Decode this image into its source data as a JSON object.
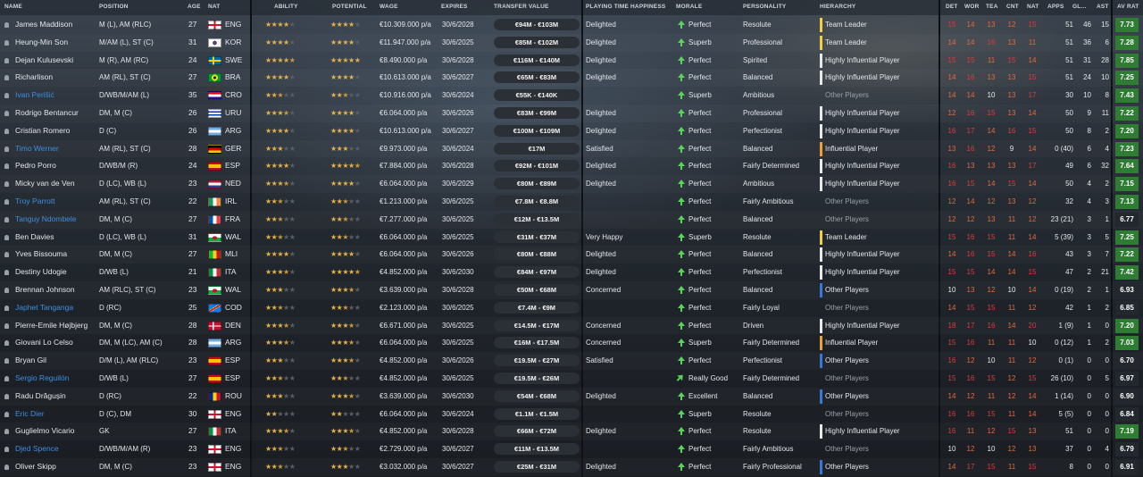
{
  "headers": {
    "name": "NAME",
    "position": "POSITION",
    "age": "AGE",
    "nat": "NAT",
    "ability": "ABILITY",
    "potential": "POTENTIAL",
    "wage": "WAGE",
    "expires": "EXPIRES",
    "transfer_value": "TRANSFER VALUE",
    "playing_time": "PLAYING TIME HAPPINESS",
    "morale": "MORALE",
    "personality": "PERSONALITY",
    "hierarchy": "HIERARCHY",
    "det": "DET",
    "wor": "WOR",
    "tea": "TEA",
    "cnt": "CNT",
    "nat2": "NAT",
    "apps": "APPS",
    "gls": "GL...",
    "ast": "AST",
    "avrat": "AV RAT"
  },
  "colors": {
    "team_leader": "#f0d040",
    "highly_influential": "#e8e8e8",
    "influential": "#f0a030",
    "other": "#3a78d8",
    "avr_green": "#2e7d32",
    "avr_dark": "#23282f"
  },
  "players": [
    {
      "name": "James Maddison",
      "pos": "M (L), AM (RLC)",
      "age": "27",
      "nat": "ENG",
      "flag": "eng",
      "ab": [
        4,
        0
      ],
      "pot": [
        4,
        0
      ],
      "wage": "€10.309.000 p/a",
      "exp": "30/6/2028",
      "val": "€94M - €103M",
      "pt": "Delighted",
      "mor": "Perfect",
      "arrow": "up",
      "pers": "Resolute",
      "hier": "Team Leader",
      "hc": "team_leader",
      "attrs": [
        "15",
        "14",
        "13",
        "12",
        "15"
      ],
      "apps": "51",
      "gls": "46",
      "ast": "15",
      "avr": "7.73",
      "blue": false
    },
    {
      "name": "Heung-Min Son",
      "pos": "M/AM (L), ST (C)",
      "age": "31",
      "nat": "KOR",
      "flag": "kor",
      "ab": [
        4,
        0
      ],
      "pot": [
        4,
        0
      ],
      "wage": "€11.947.000 p/a",
      "exp": "30/6/2025",
      "val": "€85M - €102M",
      "pt": "Delighted",
      "mor": "Superb",
      "arrow": "up",
      "pers": "Professional",
      "hier": "Team Leader",
      "hc": "team_leader",
      "attrs": [
        "14",
        "14",
        "16",
        "13",
        "11"
      ],
      "apps": "51",
      "gls": "36",
      "ast": "6",
      "avr": "7.28",
      "blue": false
    },
    {
      "name": "Dejan Kulusevski",
      "pos": "M (R), AM (RC)",
      "age": "24",
      "nat": "SWE",
      "flag": "swe",
      "ab": [
        4,
        1
      ],
      "pot": [
        5,
        0
      ],
      "wage": "€8.490.000 p/a",
      "exp": "30/6/2028",
      "val": "€116M - €140M",
      "pt": "Delighted",
      "mor": "Perfect",
      "arrow": "up",
      "pers": "Spirited",
      "hier": "Highly Influential Player",
      "hc": "highly_influential",
      "attrs": [
        "15",
        "15",
        "11",
        "15",
        "14"
      ],
      "apps": "51",
      "gls": "31",
      "ast": "28",
      "avr": "7.85",
      "blue": false
    },
    {
      "name": "Richarlison",
      "pos": "AM (RL), ST (C)",
      "age": "27",
      "nat": "BRA",
      "flag": "bra",
      "ab": [
        4,
        0
      ],
      "pot": [
        4,
        0
      ],
      "wage": "€10.613.000 p/a",
      "exp": "30/6/2027",
      "val": "€65M - €83M",
      "pt": "Delighted",
      "mor": "Perfect",
      "arrow": "up",
      "pers": "Balanced",
      "hier": "Highly Influential Player",
      "hc": "highly_influential",
      "attrs": [
        "14",
        "16",
        "13",
        "13",
        "15"
      ],
      "apps": "51",
      "gls": "24",
      "ast": "10",
      "avr": "7.25",
      "blue": false
    },
    {
      "name": "Ivan Perišić",
      "pos": "D/WB/M/AM (L)",
      "age": "35",
      "nat": "CRO",
      "flag": "cro",
      "ab": [
        2,
        1
      ],
      "pot": [
        2,
        1
      ],
      "wage": "€10.916.000 p/a",
      "exp": "30/6/2024",
      "val": "€55K - €140K",
      "pt": "",
      "mor": "Superb",
      "arrow": "up",
      "pers": "Ambitious",
      "hier": "Other Players",
      "hc": "",
      "attrs": [
        "14",
        "14",
        "10",
        "13",
        "17"
      ],
      "apps": "30",
      "gls": "10",
      "ast": "8",
      "avr": "7.43",
      "blue": true
    },
    {
      "name": "Rodrigo Bentancur",
      "pos": "DM, M (C)",
      "age": "26",
      "nat": "URU",
      "flag": "uru",
      "ab": [
        3,
        1
      ],
      "pot": [
        4,
        0
      ],
      "wage": "€6.064.000 p/a",
      "exp": "30/6/2026",
      "val": "€83M - €99M",
      "pt": "Delighted",
      "mor": "Perfect",
      "arrow": "up",
      "pers": "Professional",
      "hier": "Highly Influential Player",
      "hc": "highly_influential",
      "attrs": [
        "12",
        "16",
        "15",
        "13",
        "14"
      ],
      "apps": "50",
      "gls": "9",
      "ast": "11",
      "avr": "7.22",
      "blue": false
    },
    {
      "name": "Cristian Romero",
      "pos": "D (C)",
      "age": "26",
      "nat": "ARG",
      "flag": "arg",
      "ab": [
        4,
        0
      ],
      "pot": [
        4,
        0
      ],
      "wage": "€10.613.000 p/a",
      "exp": "30/6/2027",
      "val": "€100M - €109M",
      "pt": "Delighted",
      "mor": "Perfect",
      "arrow": "up",
      "pers": "Perfectionist",
      "hier": "Highly Influential Player",
      "hc": "highly_influential",
      "attrs": [
        "16",
        "17",
        "14",
        "16",
        "15"
      ],
      "apps": "50",
      "gls": "8",
      "ast": "2",
      "avr": "7.20",
      "blue": false
    },
    {
      "name": "Timo Werner",
      "pos": "AM (RL), ST (C)",
      "age": "28",
      "nat": "GER",
      "flag": "ger",
      "ab": [
        3,
        0
      ],
      "pot": [
        3,
        0
      ],
      "wage": "€9.973.000 p/a",
      "exp": "30/6/2024",
      "val": "€17M",
      "pt": "Satisfied",
      "mor": "Perfect",
      "arrow": "up",
      "pers": "Balanced",
      "hier": "Influential Player",
      "hc": "influential",
      "attrs": [
        "13",
        "16",
        "12",
        "9",
        "14"
      ],
      "apps": "0 (40)",
      "gls": "6",
      "ast": "4",
      "avr": "7.23",
      "blue": true
    },
    {
      "name": "Pedro Porro",
      "pos": "D/WB/M (R)",
      "age": "24",
      "nat": "ESP",
      "flag": "esp",
      "ab": [
        4,
        0
      ],
      "pot": [
        4,
        1
      ],
      "wage": "€7.884.000 p/a",
      "exp": "30/6/2028",
      "val": "€92M - €101M",
      "pt": "Delighted",
      "mor": "Perfect",
      "arrow": "up",
      "pers": "Fairly Determined",
      "hier": "Highly Influential Player",
      "hc": "highly_influential",
      "attrs": [
        "16",
        "13",
        "13",
        "13",
        "17"
      ],
      "apps": "49",
      "gls": "6",
      "ast": "32",
      "avr": "7.64",
      "blue": false
    },
    {
      "name": "Micky van de Ven",
      "pos": "D (LC), WB (L)",
      "age": "23",
      "nat": "NED",
      "flag": "ned",
      "ab": [
        3,
        1
      ],
      "pot": [
        4,
        0
      ],
      "wage": "€6.064.000 p/a",
      "exp": "30/6/2029",
      "val": "€80M - €89M",
      "pt": "Delighted",
      "mor": "Perfect",
      "arrow": "up",
      "pers": "Ambitious",
      "hier": "Highly Influential Player",
      "hc": "highly_influential",
      "attrs": [
        "16",
        "15",
        "14",
        "15",
        "14"
      ],
      "apps": "50",
      "gls": "4",
      "ast": "2",
      "avr": "7.15",
      "blue": false
    },
    {
      "name": "Troy Parrott",
      "pos": "AM (RL), ST (C)",
      "age": "22",
      "nat": "IRL",
      "flag": "irl",
      "ab": [
        2,
        1
      ],
      "pot": [
        2,
        1
      ],
      "wage": "€1.213.000 p/a",
      "exp": "30/6/2025",
      "val": "€7.8M - €8.8M",
      "pt": "",
      "mor": "Perfect",
      "arrow": "up",
      "pers": "Fairly Ambitious",
      "hier": "Other Players",
      "hc": "",
      "attrs": [
        "12",
        "14",
        "12",
        "13",
        "12"
      ],
      "apps": "32",
      "gls": "4",
      "ast": "3",
      "avr": "7.13",
      "blue": true
    },
    {
      "name": "Tanguy Ndombele",
      "pos": "DM, M (C)",
      "age": "27",
      "nat": "FRA",
      "flag": "fra",
      "ab": [
        2,
        1
      ],
      "pot": [
        2,
        1
      ],
      "wage": "€7.277.000 p/a",
      "exp": "30/6/2025",
      "val": "€12M - €13.5M",
      "pt": "",
      "mor": "Perfect",
      "arrow": "up",
      "pers": "Balanced",
      "hier": "Other Players",
      "hc": "",
      "attrs": [
        "12",
        "12",
        "13",
        "11",
        "12"
      ],
      "apps": "23 (21)",
      "gls": "3",
      "ast": "1",
      "avr": "6.77",
      "blue": true
    },
    {
      "name": "Ben Davies",
      "pos": "D (LC), WB (L)",
      "age": "31",
      "nat": "WAL",
      "flag": "wal",
      "ab": [
        2,
        1
      ],
      "pot": [
        2,
        1
      ],
      "wage": "€6.064.000 p/a",
      "exp": "30/6/2025",
      "val": "€31M - €37M",
      "pt": "Very Happy",
      "mor": "Superb",
      "arrow": "up",
      "pers": "Resolute",
      "hier": "Team Leader",
      "hc": "team_leader",
      "attrs": [
        "15",
        "16",
        "15",
        "11",
        "14"
      ],
      "apps": "5 (39)",
      "gls": "3",
      "ast": "5",
      "avr": "7.25",
      "blue": false
    },
    {
      "name": "Yves Bissouma",
      "pos": "DM, M (C)",
      "age": "27",
      "nat": "MLI",
      "flag": "mli",
      "ab": [
        4,
        0
      ],
      "pot": [
        4,
        0
      ],
      "wage": "€6.064.000 p/a",
      "exp": "30/6/2026",
      "val": "€80M - €88M",
      "pt": "Delighted",
      "mor": "Perfect",
      "arrow": "up",
      "pers": "Balanced",
      "hier": "Highly Influential Player",
      "hc": "highly_influential",
      "attrs": [
        "14",
        "16",
        "15",
        "14",
        "16"
      ],
      "apps": "43",
      "gls": "3",
      "ast": "7",
      "avr": "7.22",
      "blue": false
    },
    {
      "name": "Destiny Udogie",
      "pos": "D/WB (L)",
      "age": "21",
      "nat": "ITA",
      "flag": "ita",
      "ab": [
        3,
        1
      ],
      "pot": [
        4,
        1
      ],
      "wage": "€4.852.000 p/a",
      "exp": "30/6/2030",
      "val": "€84M - €97M",
      "pt": "Delighted",
      "mor": "Perfect",
      "arrow": "up",
      "pers": "Perfectionist",
      "hier": "Highly Influential Player",
      "hc": "highly_influential",
      "attrs": [
        "15",
        "15",
        "14",
        "14",
        "15"
      ],
      "apps": "47",
      "gls": "2",
      "ast": "21",
      "avr": "7.42",
      "blue": false
    },
    {
      "name": "Brennan Johnson",
      "pos": "AM (RLC), ST (C)",
      "age": "23",
      "nat": "WAL",
      "flag": "wal",
      "ab": [
        3,
        0
      ],
      "pot": [
        3,
        1
      ],
      "wage": "€3.639.000 p/a",
      "exp": "30/6/2028",
      "val": "€50M - €68M",
      "pt": "Concerned",
      "mor": "Perfect",
      "arrow": "up",
      "pers": "Balanced",
      "hier": "Other Players",
      "hc": "other",
      "attrs": [
        "10",
        "13",
        "12",
        "10",
        "14"
      ],
      "apps": "0 (19)",
      "gls": "2",
      "ast": "1",
      "avr": "6.93",
      "blue": false
    },
    {
      "name": "Japhet Tanganga",
      "pos": "D (RC)",
      "age": "25",
      "nat": "COD",
      "flag": "cod",
      "ab": [
        2,
        1
      ],
      "pot": [
        2,
        1
      ],
      "wage": "€2.123.000 p/a",
      "exp": "30/6/2025",
      "val": "€7.4M - €9M",
      "pt": "",
      "mor": "Perfect",
      "arrow": "up",
      "pers": "Fairly Loyal",
      "hier": "Other Players",
      "hc": "",
      "attrs": [
        "14",
        "15",
        "15",
        "11",
        "12"
      ],
      "apps": "42",
      "gls": "1",
      "ast": "2",
      "avr": "6.85",
      "blue": true
    },
    {
      "name": "Pierre-Emile Højbjerg",
      "pos": "DM, M (C)",
      "age": "28",
      "nat": "DEN",
      "flag": "den",
      "ab": [
        3,
        1
      ],
      "pot": [
        3,
        1
      ],
      "wage": "€6.671.000 p/a",
      "exp": "30/6/2025",
      "val": "€14.5M - €17M",
      "pt": "Concerned",
      "mor": "Perfect",
      "arrow": "up",
      "pers": "Driven",
      "hier": "Highly Influential Player",
      "hc": "highly_influential",
      "attrs": [
        "18",
        "17",
        "16",
        "14",
        "20"
      ],
      "apps": "1 (9)",
      "gls": "1",
      "ast": "0",
      "avr": "7.20",
      "blue": false
    },
    {
      "name": "Giovani Lo Celso",
      "pos": "DM, M (LC), AM (C)",
      "age": "28",
      "nat": "ARG",
      "flag": "arg",
      "ab": [
        3,
        1
      ],
      "pot": [
        3,
        1
      ],
      "wage": "€6.064.000 p/a",
      "exp": "30/6/2025",
      "val": "€16M - €17.5M",
      "pt": "Concerned",
      "mor": "Superb",
      "arrow": "up",
      "pers": "Fairly Determined",
      "hier": "Influential Player",
      "hc": "influential",
      "attrs": [
        "15",
        "16",
        "11",
        "11",
        "10"
      ],
      "apps": "0 (12)",
      "gls": "1",
      "ast": "2",
      "avr": "7.03",
      "blue": false
    },
    {
      "name": "Bryan Gil",
      "pos": "D/M (L), AM (RLC)",
      "age": "23",
      "nat": "ESP",
      "flag": "esp",
      "ab": [
        3,
        0
      ],
      "pot": [
        3,
        1
      ],
      "wage": "€4.852.000 p/a",
      "exp": "30/6/2026",
      "val": "€19.5M - €27M",
      "pt": "Satisfied",
      "mor": "Perfect",
      "arrow": "up",
      "pers": "Perfectionist",
      "hier": "Other Players",
      "hc": "other",
      "attrs": [
        "16",
        "12",
        "10",
        "11",
        "12"
      ],
      "apps": "0 (1)",
      "gls": "0",
      "ast": "0",
      "avr": "6.70",
      "blue": false
    },
    {
      "name": "Sergio Reguilón",
      "pos": "D/WB (L)",
      "age": "27",
      "nat": "ESP",
      "flag": "esp",
      "ab": [
        2,
        1
      ],
      "pot": [
        2,
        1
      ],
      "wage": "€4.852.000 p/a",
      "exp": "30/6/2025",
      "val": "€19.5M - €26M",
      "pt": "",
      "mor": "Really Good",
      "arrow": "diag",
      "pers": "Fairly Determined",
      "hier": "Other Players",
      "hc": "",
      "attrs": [
        "15",
        "16",
        "15",
        "12",
        "15"
      ],
      "apps": "26 (10)",
      "gls": "0",
      "ast": "5",
      "avr": "6.97",
      "blue": true
    },
    {
      "name": "Radu Drăgușin",
      "pos": "D (RC)",
      "age": "22",
      "nat": "ROU",
      "flag": "rou",
      "ab": [
        3,
        0
      ],
      "pot": [
        3,
        1
      ],
      "wage": "€3.639.000 p/a",
      "exp": "30/6/2030",
      "val": "€54M - €68M",
      "pt": "Delighted",
      "mor": "Excellent",
      "arrow": "up",
      "pers": "Balanced",
      "hier": "Other Players",
      "hc": "other",
      "attrs": [
        "14",
        "12",
        "11",
        "12",
        "14"
      ],
      "apps": "1 (14)",
      "gls": "0",
      "ast": "0",
      "avr": "6.90",
      "blue": false
    },
    {
      "name": "Eric Dier",
      "pos": "D (C), DM",
      "age": "30",
      "nat": "ENG",
      "flag": "eng",
      "ab": [
        2,
        0
      ],
      "pot": [
        2,
        0
      ],
      "wage": "€6.064.000 p/a",
      "exp": "30/6/2024",
      "val": "€1.1M - €1.5M",
      "pt": "",
      "mor": "Superb",
      "arrow": "up",
      "pers": "Resolute",
      "hier": "Other Players",
      "hc": "",
      "attrs": [
        "16",
        "16",
        "15",
        "11",
        "14"
      ],
      "apps": "5 (5)",
      "gls": "0",
      "ast": "0",
      "avr": "6.84",
      "blue": true
    },
    {
      "name": "Guglielmo Vicario",
      "pos": "GK",
      "age": "27",
      "nat": "ITA",
      "flag": "ita",
      "ab": [
        3,
        1
      ],
      "pot": [
        3,
        1
      ],
      "wage": "€4.852.000 p/a",
      "exp": "30/6/2028",
      "val": "€66M - €72M",
      "pt": "Delighted",
      "mor": "Perfect",
      "arrow": "up",
      "pers": "Resolute",
      "hier": "Highly Influential Player",
      "hc": "highly_influential",
      "attrs": [
        "16",
        "11",
        "12",
        "15",
        "13"
      ],
      "apps": "51",
      "gls": "0",
      "ast": "0",
      "avr": "7.19",
      "blue": false
    },
    {
      "name": "Djed Spence",
      "pos": "D/WB/M/AM (R)",
      "age": "23",
      "nat": "ENG",
      "flag": "eng",
      "ab": [
        2,
        1
      ],
      "pot": [
        2,
        1
      ],
      "wage": "€2.729.000 p/a",
      "exp": "30/6/2027",
      "val": "€11M - €13.5M",
      "pt": "",
      "mor": "Perfect",
      "arrow": "up",
      "pers": "Fairly Ambitious",
      "hier": "Other Players",
      "hc": "",
      "attrs": [
        "10",
        "12",
        "10",
        "12",
        "13"
      ],
      "apps": "37",
      "gls": "0",
      "ast": "4",
      "avr": "6.79",
      "blue": true
    },
    {
      "name": "Oliver Skipp",
      "pos": "DM, M (C)",
      "age": "23",
      "nat": "ENG",
      "flag": "eng",
      "ab": [
        2,
        1
      ],
      "pot": [
        3,
        0
      ],
      "wage": "€3.032.000 p/a",
      "exp": "30/6/2027",
      "val": "€25M - €31M",
      "pt": "Delighted",
      "mor": "Perfect",
      "arrow": "up",
      "pers": "Fairly Professional",
      "hier": "Other Players",
      "hc": "other",
      "attrs": [
        "14",
        "17",
        "15",
        "11",
        "15"
      ],
      "apps": "8",
      "gls": "0",
      "ast": "0",
      "avr": "6.91",
      "blue": false
    }
  ]
}
